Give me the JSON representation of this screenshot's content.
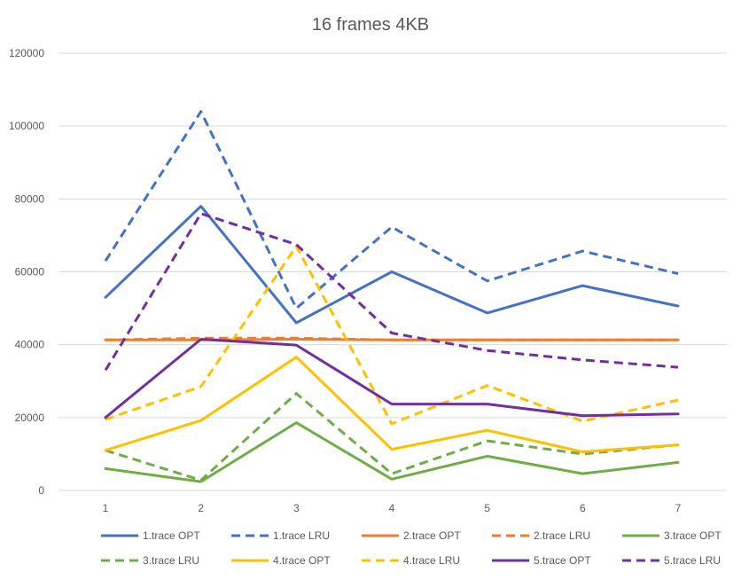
{
  "chart_data": {
    "type": "line",
    "title": "16 frames 4KB",
    "xlabel": "",
    "ylabel": "",
    "x": [
      1,
      2,
      3,
      4,
      5,
      6,
      7
    ],
    "x_tick_labels": [
      "1",
      "2",
      "3",
      "4",
      "5",
      "6",
      "7"
    ],
    "ylim": [
      0,
      120000
    ],
    "y_ticks": [
      0,
      20000,
      40000,
      60000,
      80000,
      100000,
      120000
    ],
    "y_tick_labels": [
      "0",
      "20000",
      "40000",
      "60000",
      "80000",
      "100000",
      "120000"
    ],
    "grid": true,
    "legend_position": "bottom",
    "series": [
      {
        "name": "1.trace OPT",
        "color": "#4472C4",
        "dashed": false,
        "values": [
          53000,
          78000,
          46000,
          60000,
          48700,
          56200,
          50600
        ]
      },
      {
        "name": "1.trace LRU",
        "color": "#4472C4",
        "dashed": true,
        "values": [
          63000,
          104000,
          50000,
          72300,
          57500,
          65700,
          59500
        ]
      },
      {
        "name": "2.trace OPT",
        "color": "#ED7D31",
        "dashed": false,
        "values": [
          41300,
          41300,
          41500,
          41300,
          41300,
          41300,
          41300
        ]
      },
      {
        "name": "2.trace LRU",
        "color": "#ED7D31",
        "dashed": true,
        "values": [
          41300,
          41800,
          41800,
          41300,
          41300,
          41300,
          41300
        ]
      },
      {
        "name": "3.trace OPT",
        "color": "#70AD47",
        "dashed": false,
        "values": [
          6000,
          2400,
          18600,
          3100,
          9400,
          4600,
          7700
        ]
      },
      {
        "name": "3.trace LRU",
        "color": "#70AD47",
        "dashed": true,
        "values": [
          11000,
          2800,
          26600,
          4600,
          13600,
          10000,
          12500
        ]
      },
      {
        "name": "4.trace OPT",
        "color": "#FFC000",
        "dashed": false,
        "values": [
          11000,
          19200,
          36600,
          11300,
          16500,
          10600,
          12500
        ]
      },
      {
        "name": "4.trace LRU",
        "color": "#FFC000",
        "dashed": true,
        "values": [
          19500,
          28500,
          67000,
          18300,
          28800,
          19000,
          24800
        ]
      },
      {
        "name": "5.trace OPT",
        "color": "#7030A0",
        "dashed": false,
        "values": [
          20000,
          41500,
          39900,
          23700,
          23700,
          20500,
          21000
        ]
      },
      {
        "name": "5.trace LRU",
        "color": "#7030A0",
        "dashed": true,
        "values": [
          33000,
          76000,
          67500,
          43200,
          38400,
          35800,
          33800
        ]
      }
    ]
  }
}
